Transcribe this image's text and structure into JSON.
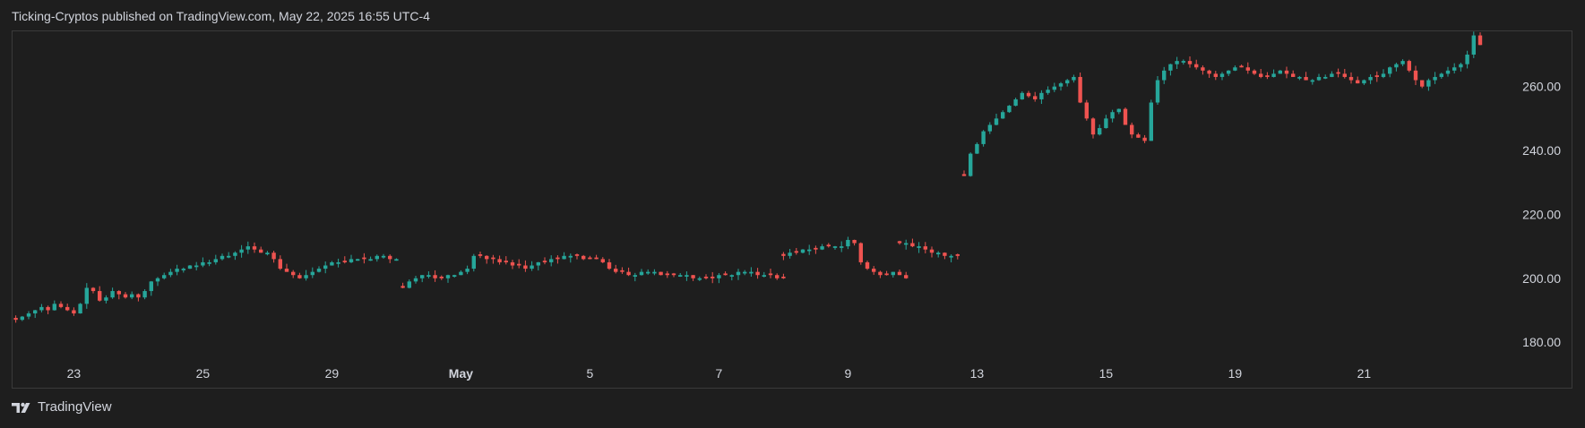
{
  "header": {
    "text": "Ticking-Cryptos published on TradingView.com, May 22, 2025 16:55 UTC-4"
  },
  "footer": {
    "brand": "TradingView"
  },
  "colors": {
    "up": "#26a69a",
    "down": "#ef5350",
    "background": "#1e1e1e",
    "text": "#d1d4dc",
    "border": "#3a3a3a"
  },
  "chart_data": {
    "type": "candlestick",
    "title": "",
    "xlabel": "",
    "ylabel": "",
    "ylim": [
      175,
      277
    ],
    "y_ticks": [
      {
        "value": 260,
        "label": "260.00"
      },
      {
        "value": 240,
        "label": "240.00"
      },
      {
        "value": 220,
        "label": "220.00"
      },
      {
        "value": 200,
        "label": "200.00"
      },
      {
        "value": 180,
        "label": "180.00"
      }
    ],
    "x_ticks": [
      {
        "label": "23",
        "index": 9,
        "bold": false
      },
      {
        "label": "25",
        "index": 29,
        "bold": false
      },
      {
        "label": "29",
        "index": 49,
        "bold": false
      },
      {
        "label": "May",
        "index": 69,
        "bold": true
      },
      {
        "label": "5",
        "index": 89,
        "bold": false
      },
      {
        "label": "7",
        "index": 109,
        "bold": false
      },
      {
        "label": "9",
        "index": 129,
        "bold": false
      },
      {
        "label": "13",
        "index": 149,
        "bold": false
      },
      {
        "label": "15",
        "index": 169,
        "bold": false
      },
      {
        "label": "19",
        "index": 189,
        "bold": false
      },
      {
        "label": "21",
        "index": 209,
        "bold": false
      }
    ],
    "bars": 230,
    "gaps": [
      [
        60,
        1.5
      ],
      [
        119,
        1.5
      ],
      [
        137,
        1.5
      ],
      [
        147,
        3.0
      ],
      [
        159,
        1.5
      ],
      [
        218,
        1.5
      ]
    ],
    "series": [
      {
        "start": 0,
        "closes": [
          187,
          188,
          189,
          190,
          191,
          190,
          192,
          191,
          190,
          189,
          192,
          197,
          196,
          193,
          194,
          196,
          195,
          194,
          195,
          194,
          196,
          199,
          200,
          201,
          202,
          203,
          203,
          204,
          204,
          205,
          205,
          206,
          207,
          207,
          208,
          209,
          210,
          209,
          208,
          208,
          206,
          203,
          202,
          201,
          200,
          201,
          202,
          203,
          204,
          205,
          205,
          205,
          206,
          206,
          206,
          206,
          207,
          207,
          206,
          206
        ]
      },
      {
        "start": 60,
        "closes": [
          197,
          199,
          200,
          201,
          201,
          200,
          200,
          201,
          201,
          202,
          203,
          207,
          207,
          206,
          206,
          205,
          205,
          204,
          204,
          203,
          204,
          205,
          205,
          206,
          206,
          207,
          207,
          207,
          206,
          206,
          206,
          205,
          203,
          202,
          202,
          201,
          201,
          202,
          202,
          202,
          201,
          201,
          201,
          201,
          201,
          200,
          200,
          200,
          200,
          201,
          201,
          201,
          202,
          202,
          202,
          201,
          201,
          201,
          200,
          200
        ]
      },
      {
        "start": 119,
        "closes": [
          207,
          208,
          208,
          209,
          209,
          209,
          210,
          210,
          210,
          210,
          212,
          211,
          205,
          203,
          202,
          201,
          201,
          202,
          201,
          200
        ]
      },
      {
        "start": 137,
        "closes": [
          211,
          211,
          210,
          210,
          209,
          208,
          208,
          207,
          207,
          207
        ]
      },
      {
        "start": 147,
        "closes": [
          232,
          239,
          242,
          246,
          248,
          250,
          252,
          254,
          256,
          258,
          257,
          256,
          258,
          259,
          260,
          261,
          262,
          263,
          255,
          250,
          245,
          247,
          250,
          252,
          253,
          248,
          245,
          244,
          243,
          255,
          262,
          265,
          267,
          268,
          268,
          267,
          266,
          265,
          264,
          263,
          264,
          265,
          266,
          266,
          265,
          264,
          263,
          263,
          264,
          265,
          264,
          263,
          263,
          262,
          262,
          263,
          263,
          264,
          264,
          263,
          262,
          261,
          262,
          263,
          263,
          264,
          266,
          267,
          268,
          265,
          262,
          260,
          262,
          263,
          264,
          265,
          266,
          267,
          270,
          276,
          273
        ]
      }
    ]
  }
}
